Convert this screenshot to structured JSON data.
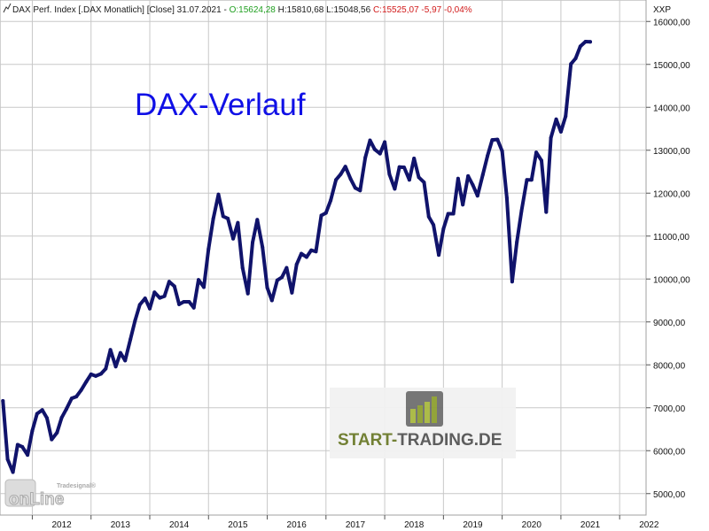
{
  "header": {
    "icon": "line-chart-icon",
    "title": "DAX Perf. Index [.DAX  Monatlich] [Close] 31.07.2021 - ",
    "open": "O:15624,28",
    "mid": " H:15810,68 L:15048,56 ",
    "change": "C:15525,07 -5,97 -0,04%"
  },
  "axis_unit": "XXP",
  "watermark_online": {
    "small": "Tradesignal®",
    "big": "onLine"
  },
  "brand": {
    "icon": "bar-chart-logo-icon",
    "part1": "START-",
    "part2": "TRADING.DE",
    "color1": "#6b7a2a",
    "color2": "#555555"
  },
  "colors": {
    "line": "#10136b",
    "grid": "#c8c8c8",
    "title": "#1010e6"
  },
  "chart_data": {
    "type": "line",
    "title": "DAX-Verlauf",
    "xlabel": "",
    "ylabel": "",
    "x_tick_labels": [
      "2012",
      "2013",
      "2014",
      "2015",
      "2016",
      "2017",
      "2018",
      "2019",
      "2020",
      "2021",
      "2022"
    ],
    "xlim": [
      2011.45,
      2022.45
    ],
    "ylim": [
      4500,
      16500
    ],
    "y_ticks": [
      5000,
      6000,
      7000,
      8000,
      9000,
      10000,
      11000,
      12000,
      13000,
      14000,
      15000,
      16000
    ],
    "y_tick_labels": [
      "5000,00",
      "6000,00",
      "7000,00",
      "8000,00",
      "9000,00",
      "10000,00",
      "11000,00",
      "12000,00",
      "13000,00",
      "14000,00",
      "15000,00",
      "16000,00"
    ],
    "grid": true,
    "series": [
      {
        "name": "",
        "x": [
          2011.5,
          2011.58,
          2011.67,
          2011.75,
          2011.83,
          2011.92,
          2012.0,
          2012.08,
          2012.17,
          2012.25,
          2012.33,
          2012.42,
          2012.5,
          2012.58,
          2012.67,
          2012.75,
          2012.83,
          2012.92,
          2013.0,
          2013.08,
          2013.17,
          2013.25,
          2013.33,
          2013.42,
          2013.5,
          2013.58,
          2013.67,
          2013.75,
          2013.83,
          2013.92,
          2014.0,
          2014.08,
          2014.17,
          2014.25,
          2014.33,
          2014.42,
          2014.5,
          2014.58,
          2014.67,
          2014.75,
          2014.83,
          2014.92,
          2015.0,
          2015.08,
          2015.17,
          2015.25,
          2015.33,
          2015.42,
          2015.5,
          2015.58,
          2015.67,
          2015.75,
          2015.83,
          2015.92,
          2016.0,
          2016.08,
          2016.17,
          2016.25,
          2016.33,
          2016.42,
          2016.5,
          2016.58,
          2016.67,
          2016.75,
          2016.83,
          2016.92,
          2017.0,
          2017.08,
          2017.17,
          2017.25,
          2017.33,
          2017.42,
          2017.5,
          2017.58,
          2017.67,
          2017.75,
          2017.83,
          2017.92,
          2018.0,
          2018.08,
          2018.17,
          2018.25,
          2018.33,
          2018.42,
          2018.5,
          2018.58,
          2018.67,
          2018.75,
          2018.83,
          2018.92,
          2019.0,
          2019.08,
          2019.17,
          2019.25,
          2019.33,
          2019.42,
          2019.5,
          2019.58,
          2019.67,
          2019.75,
          2019.83,
          2019.92,
          2020.0,
          2020.08,
          2020.17,
          2020.25,
          2020.33,
          2020.42,
          2020.5,
          2020.58,
          2020.67,
          2020.75,
          2020.83,
          2020.92,
          2021.0,
          2021.08,
          2021.17,
          2021.25,
          2021.33,
          2021.42,
          2021.5
        ],
        "values": [
          7160,
          5800,
          5500,
          6140,
          6090,
          5900,
          6460,
          6860,
          6950,
          6760,
          6260,
          6420,
          6770,
          6970,
          7220,
          7260,
          7410,
          7610,
          7780,
          7740,
          7790,
          7910,
          8350,
          7960,
          8280,
          8100,
          8590,
          9030,
          9400,
          9550,
          9310,
          9690,
          9560,
          9600,
          9940,
          9830,
          9410,
          9470,
          9470,
          9330,
          9980,
          9810,
          10700,
          11400,
          11970,
          11460,
          11410,
          10940,
          11310,
          10260,
          9660,
          10850,
          11380,
          10740,
          9800,
          9500,
          9970,
          10040,
          10260,
          9680,
          10340,
          10590,
          10510,
          10670,
          10640,
          11480,
          11540,
          11830,
          12310,
          12440,
          12620,
          12330,
          12120,
          12060,
          12830,
          13230,
          13020,
          12920,
          13190,
          12440,
          12100,
          12610,
          12600,
          12310,
          12810,
          12370,
          12250,
          11450,
          11260,
          10560,
          11170,
          11520,
          11520,
          12340,
          11730,
          12400,
          12190,
          11940,
          12430,
          12870,
          13240,
          13250,
          12980,
          11890,
          9940,
          10860,
          11590,
          12310,
          12310,
          12950,
          12760,
          11560,
          13290,
          13720,
          13430,
          13790,
          15010,
          15140,
          15420,
          15530,
          15525
        ]
      }
    ]
  }
}
